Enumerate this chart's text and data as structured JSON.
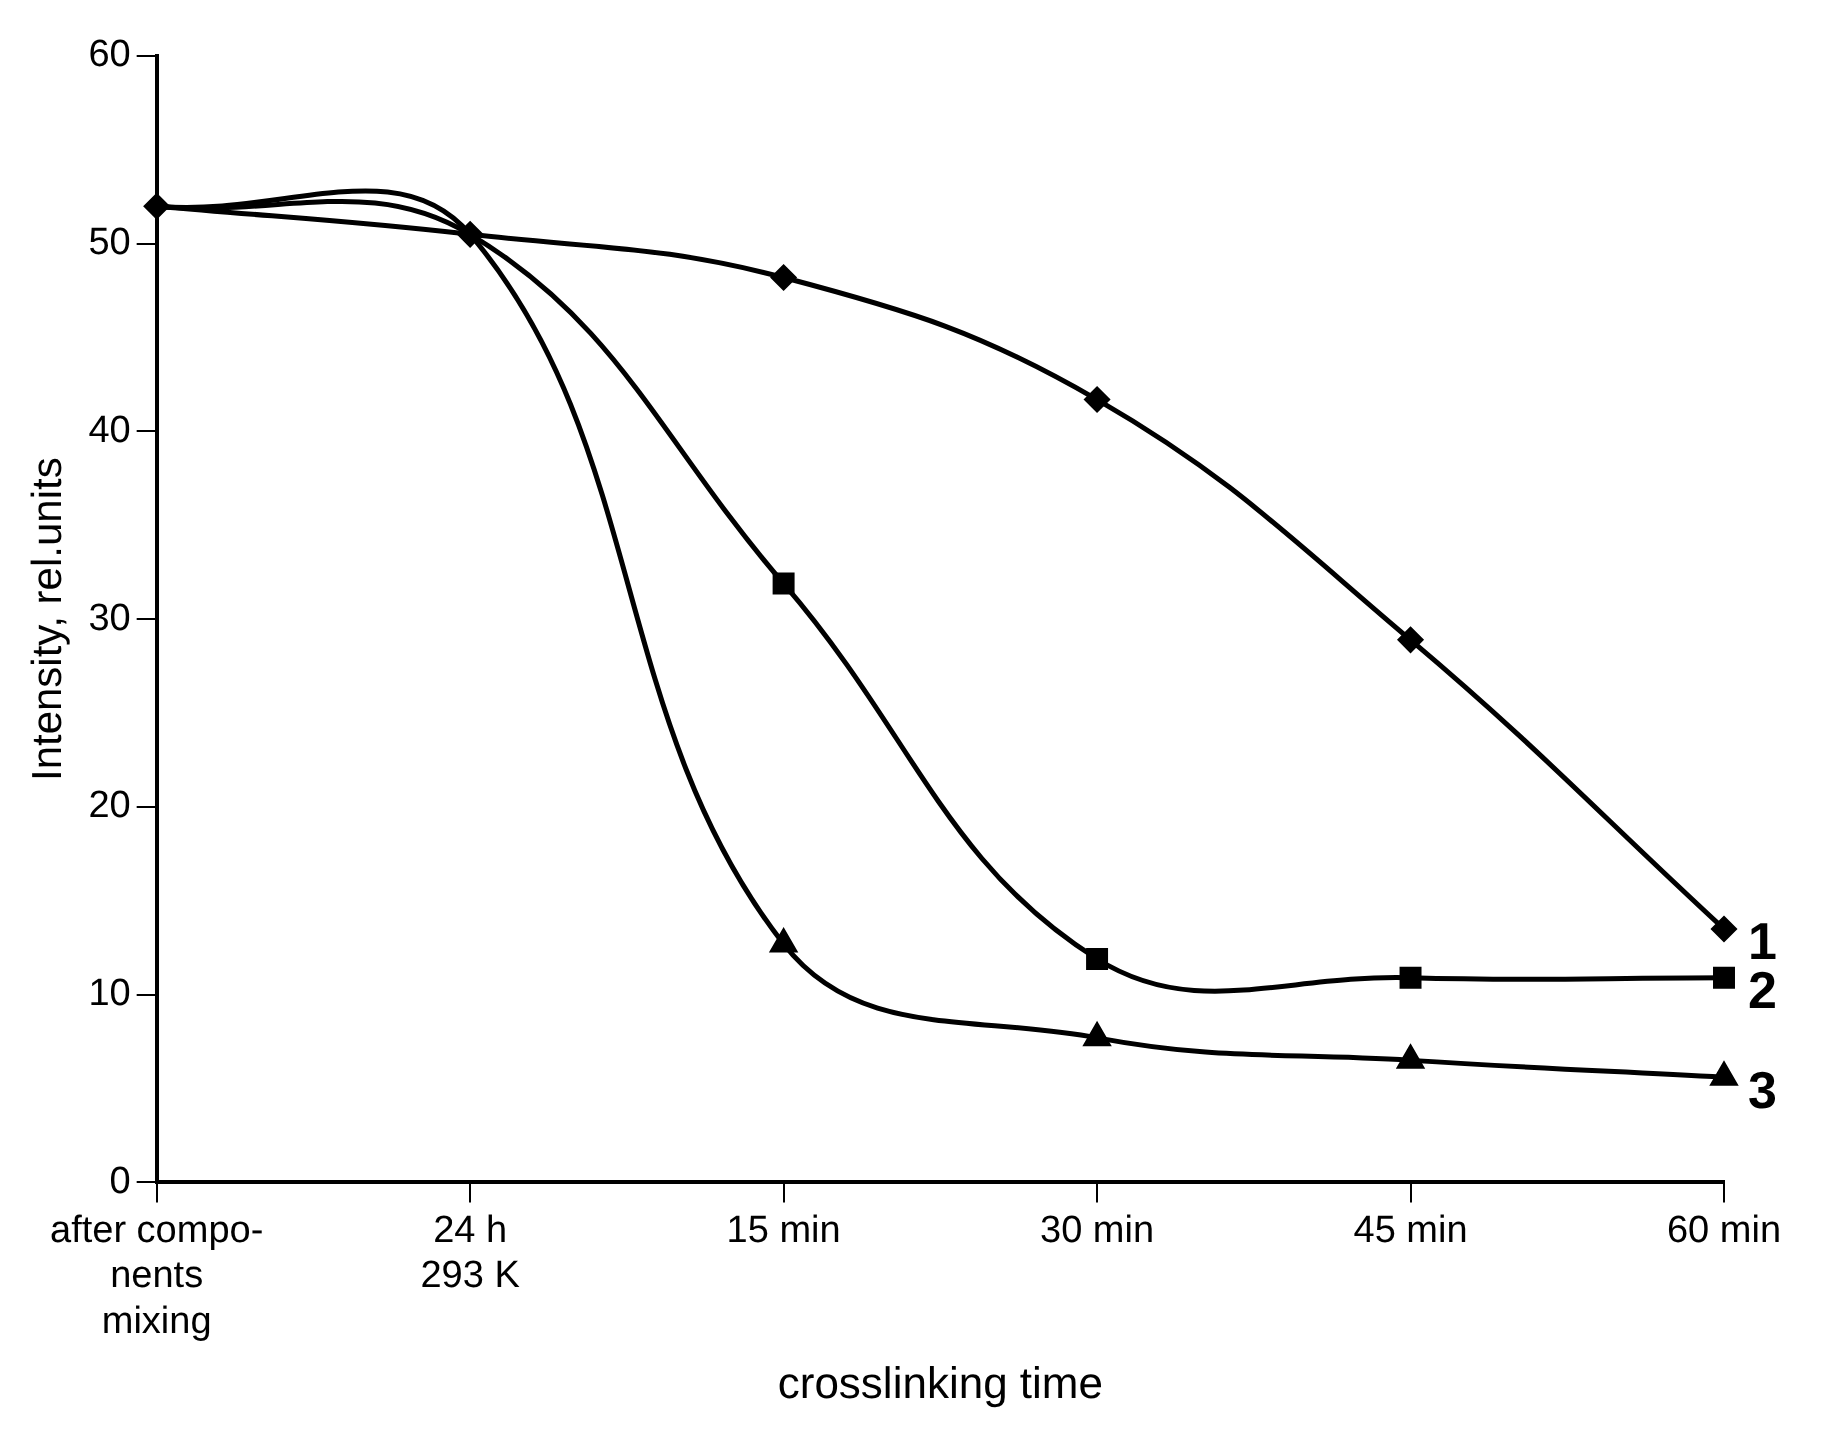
{
  "chart_data": {
    "type": "line",
    "xlabel": "crosslinking time",
    "ylabel": "Intensity, rel.units",
    "categories": [
      "after compo-\nnents\nmixing",
      "24 h\n293 K",
      "15 min",
      "30 min",
      "45 min",
      "60 min"
    ],
    "series": [
      {
        "name": "1",
        "color": "#000000",
        "marker": "diamond",
        "values": [
          52,
          50.5,
          48.2,
          41.7,
          28.9,
          13.5
        ]
      },
      {
        "name": "2",
        "color": "#000000",
        "marker": "square",
        "values": [
          52,
          50.5,
          31.9,
          11.9,
          10.9,
          10.9
        ]
      },
      {
        "name": "3",
        "color": "#000000",
        "marker": "triangle",
        "values": [
          52,
          50.5,
          12.7,
          7.7,
          6.5,
          5.6
        ]
      }
    ],
    "ylim": [
      0,
      60
    ],
    "yticks": [
      0,
      10,
      20,
      30,
      40,
      50,
      60
    ],
    "grid": false,
    "legend": false
  }
}
